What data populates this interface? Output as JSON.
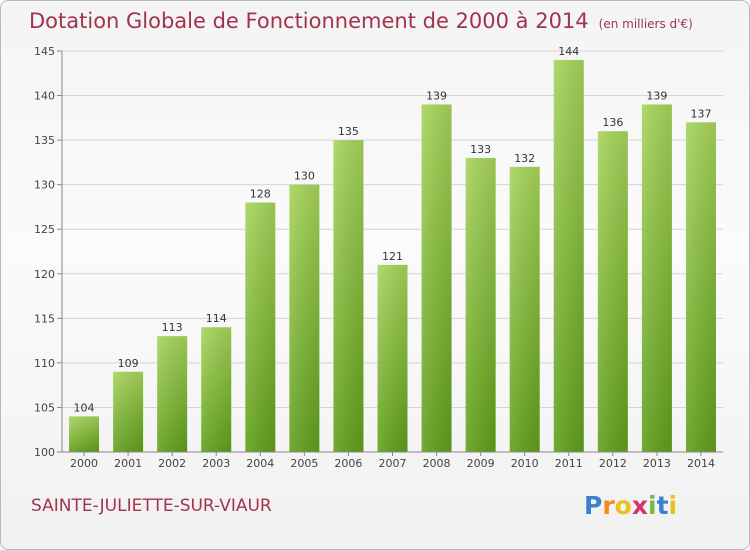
{
  "title": "Dotation Globale de Fonctionnement de 2000 à 2014",
  "unit_note": "(en milliers d'€)",
  "commune": "SAINTE-JULIETTE-SUR-VIAUR",
  "logo": {
    "letters": [
      "P",
      "r",
      "o",
      "x",
      "i",
      "t",
      "i"
    ],
    "colors": [
      "#3d7fcf",
      "#f08a1c",
      "#e8c21a",
      "#d6336c",
      "#7ab648",
      "#3d7fcf",
      "#e8c21a"
    ]
  },
  "colors": {
    "title": "#a2334f",
    "bar_light": "#a6d45a",
    "bar_dark": "#5f9e1a",
    "grid": "#d4d4d4"
  },
  "chart_data": {
    "type": "bar",
    "title": "Dotation Globale de Fonctionnement de 2000 à 2014",
    "xlabel": "",
    "ylabel": "",
    "ylim": [
      100,
      145
    ],
    "yticks": [
      100,
      105,
      110,
      115,
      120,
      125,
      130,
      135,
      140,
      145
    ],
    "grid": true,
    "categories": [
      "2000",
      "2001",
      "2002",
      "2003",
      "2004",
      "2005",
      "2006",
      "2007",
      "2008",
      "2009",
      "2010",
      "2011",
      "2012",
      "2013",
      "2014"
    ],
    "values": [
      104,
      109,
      113,
      114,
      128,
      130,
      135,
      121,
      139,
      133,
      132,
      144,
      136,
      139,
      137
    ]
  }
}
